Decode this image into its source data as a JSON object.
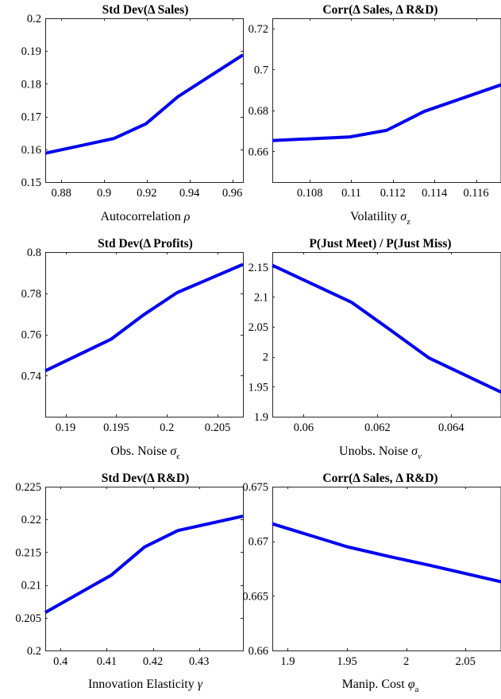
{
  "chart_data": [
    {
      "type": "line",
      "title": "Std Dev(Δ Sales)",
      "xlabel": "Autocorrelation ρ",
      "ylabel": "",
      "xlim": [
        0.8725,
        0.965
      ],
      "ylim": [
        0.15,
        0.2
      ],
      "xticks": [
        "0.88",
        "0.9",
        "0.92",
        "0.94",
        "0.96"
      ],
      "xtick_values": [
        0.88,
        0.9,
        0.92,
        0.94,
        0.96
      ],
      "yticks": [
        "0.15",
        "0.16",
        "0.17",
        "0.18",
        "0.19",
        "0.2"
      ],
      "ytick_values": [
        0.15,
        0.16,
        0.17,
        0.18,
        0.19,
        0.2
      ],
      "grid": false,
      "color": "#0000ee",
      "x": [
        0.8725,
        0.9046,
        0.9196,
        0.9346,
        0.965
      ],
      "y": [
        0.1588,
        0.1633,
        0.1678,
        0.1761,
        0.1888
      ]
    },
    {
      "type": "line",
      "title": "Corr(Δ Sales, Δ R&D)",
      "xlabel": "Volatility σz",
      "ylabel": "",
      "xlim": [
        0.1062,
        0.1172
      ],
      "ylim": [
        0.645,
        0.725
      ],
      "xticks": [
        "0.108",
        "0.11",
        "0.112",
        "0.114",
        "0.116"
      ],
      "xtick_values": [
        0.108,
        0.11,
        0.112,
        0.114,
        0.116
      ],
      "yticks": [
        "0.66",
        "0.68",
        "0.7",
        "0.72"
      ],
      "ytick_values": [
        0.66,
        0.68,
        0.7,
        0.72
      ],
      "grid": false,
      "color": "#0000ee",
      "x": [
        0.1062,
        0.1099,
        0.1117,
        0.1135,
        0.1172
      ],
      "y": [
        0.6653,
        0.667,
        0.6703,
        0.6795,
        0.6925
      ]
    },
    {
      "type": "line",
      "title": "Std Dev(Δ Profits)",
      "xlabel": "Obs. Noise σϵ",
      "ylabel": "",
      "xlim": [
        0.188,
        0.2075
      ],
      "ylim": [
        0.72,
        0.8
      ],
      "xticks": [
        "0.19",
        "0.195",
        "0.2",
        "0.205"
      ],
      "xtick_values": [
        0.19,
        0.195,
        0.2,
        0.205
      ],
      "yticks": [
        "0.74",
        "0.76",
        "0.78",
        "0.8"
      ],
      "ytick_values": [
        0.74,
        0.76,
        0.78,
        0.8
      ],
      "grid": false,
      "color": "#0000ee",
      "x": [
        0.188,
        0.1945,
        0.1977,
        0.201,
        0.2075
      ],
      "y": [
        0.7423,
        0.7577,
        0.7695,
        0.7803,
        0.794
      ]
    },
    {
      "type": "line",
      "title": "P(Just Meet) / P(Just Miss)",
      "xlabel": "Unobs. Noise σν",
      "ylabel": "",
      "xlim": [
        0.05915,
        0.06535
      ],
      "ylim": [
        1.9,
        2.175
      ],
      "xticks": [
        "0.06",
        "0.062",
        "0.064"
      ],
      "xtick_values": [
        0.06,
        0.062,
        0.064
      ],
      "yticks": [
        "1.9",
        "1.95",
        "2",
        "2.05",
        "2.1",
        "2.15"
      ],
      "ytick_values": [
        1.9,
        1.95,
        2.0,
        2.05,
        2.1,
        2.15
      ],
      "grid": false,
      "color": "#0000ee",
      "x": [
        0.05915,
        0.0613,
        0.0623,
        0.0634,
        0.06535
      ],
      "y": [
        2.153,
        2.091,
        2.047,
        1.998,
        1.941
      ]
    },
    {
      "type": "line",
      "title": "Std Dev(Δ R&D)",
      "xlabel": "Innovation Elasticity γ",
      "ylabel": "",
      "xlim": [
        0.3967,
        0.4395
      ],
      "ylim": [
        0.2,
        0.225
      ],
      "xticks": [
        "0.4",
        "0.41",
        "0.42",
        "0.43"
      ],
      "xtick_values": [
        0.4,
        0.41,
        0.42,
        0.43
      ],
      "yticks": [
        "0.2",
        "0.205",
        "0.21",
        "0.215",
        "0.22",
        "0.225"
      ],
      "ytick_values": [
        0.2,
        0.205,
        0.21,
        0.215,
        0.22,
        0.225
      ],
      "grid": false,
      "color": "#0000ee",
      "x": [
        0.3967,
        0.411,
        0.4182,
        0.4254,
        0.4395
      ],
      "y": [
        0.2058,
        0.2115,
        0.2158,
        0.2183,
        0.2205
      ]
    },
    {
      "type": "line",
      "title": "Corr(Δ Sales, Δ R&D)",
      "xlabel": "Manip. Cost φa",
      "ylabel": "",
      "xlim": [
        1.887,
        2.08
      ],
      "ylim": [
        0.66,
        0.675
      ],
      "xticks": [
        "1.9",
        "1.95",
        "2",
        "2.05"
      ],
      "xtick_values": [
        1.9,
        1.95,
        2.0,
        2.05
      ],
      "yticks": [
        "0.66",
        "0.665",
        "0.67",
        "0.675"
      ],
      "ytick_values": [
        0.66,
        0.665,
        0.67,
        0.675
      ],
      "grid": false,
      "color": "#0000ee",
      "x": [
        1.887,
        1.95,
        1.986,
        2.02,
        2.08
      ],
      "y": [
        0.6716,
        0.6695,
        0.6686,
        0.6678,
        0.6663
      ]
    }
  ]
}
